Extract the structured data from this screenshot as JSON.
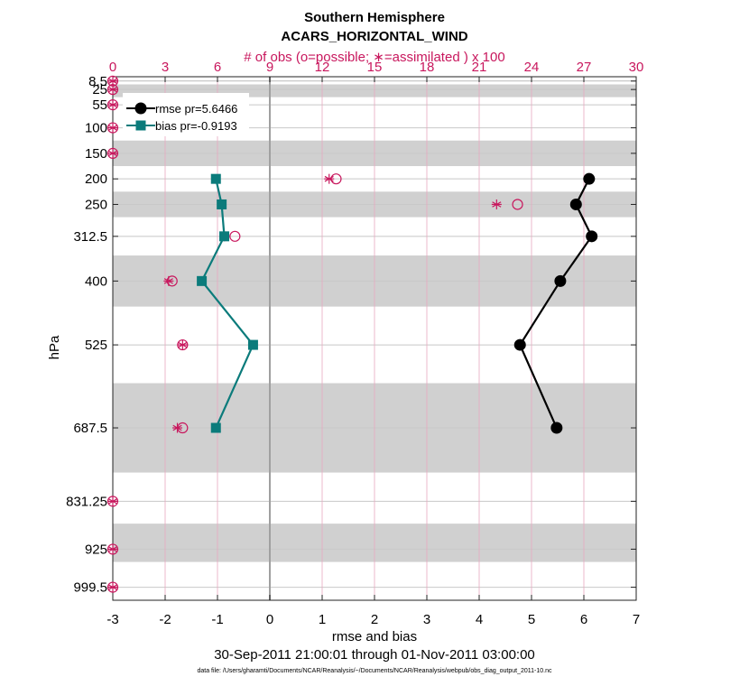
{
  "chart_data": {
    "type": "line",
    "title": "Southern Hemisphere",
    "subtitle": "ACARS_HORIZONTAL_WIND",
    "top_axis_label": "# of obs (o=possible; ∗=assimilated ) x 100",
    "xlabel": "rmse and bias",
    "ylabel": "hPa",
    "date_range": "30-Sep-2011 21:00:01 through 01-Nov-2011 03:00:00",
    "footnote": "data file: /Users/gharamti/Documents/NCAR/Reanalysis/~/Documents/NCAR/Reanalysis/webpub/obs_diag_output_2011-10.nc",
    "xlim": [
      -3,
      7
    ],
    "x_ticks": [
      "-3",
      "-2",
      "-1",
      "0",
      "1",
      "2",
      "3",
      "4",
      "5",
      "6",
      "7"
    ],
    "top_xlim": [
      0,
      30
    ],
    "top_ticks": [
      "0",
      "3",
      "6",
      "9",
      "12",
      "15",
      "18",
      "21",
      "24",
      "27",
      "30"
    ],
    "ylim_hpa": [
      0,
      1025
    ],
    "levels": [
      8.5,
      25,
      55,
      100,
      150,
      200,
      250,
      312.5,
      400,
      525,
      687.5,
      831.25,
      925,
      999.5
    ],
    "level_labels": [
      "8.5",
      "25",
      "55",
      "100",
      "150",
      "200",
      "250",
      "312.5",
      "400",
      "525",
      "687.5",
      "831.25",
      "925",
      "999.5"
    ],
    "layer_bands_hpa": [
      [
        7,
        9
      ],
      [
        15,
        40
      ],
      [
        125,
        175
      ],
      [
        225,
        275
      ],
      [
        350,
        450
      ],
      [
        600,
        775
      ],
      [
        875,
        950
      ]
    ],
    "series": [
      {
        "name": "rmse",
        "legend": "rmse pr=5.6466",
        "color": "#000000",
        "marker": "circle",
        "levels": [
          200,
          250,
          312.5,
          400,
          525,
          687.5
        ],
        "values": [
          6.1,
          5.85,
          6.15,
          5.55,
          4.78,
          5.48
        ]
      },
      {
        "name": "bias",
        "legend": "bias pr=-0.9193",
        "color": "#0b7b7b",
        "marker": "square",
        "levels": [
          200,
          250,
          312.5,
          400,
          525,
          687.5
        ],
        "values": [
          -1.03,
          -0.92,
          -0.87,
          -1.3,
          -0.32,
          -1.03
        ]
      }
    ],
    "obs_counts": {
      "color": "#c8175d",
      "levels": [
        8.5,
        25,
        55,
        100,
        150,
        200,
        250,
        312.5,
        400,
        525,
        687.5,
        831.25,
        925,
        999.5
      ],
      "possible": [
        0,
        0,
        0,
        0,
        0,
        12.8,
        23.2,
        7.0,
        3.4,
        4.0,
        4.0,
        0,
        0,
        0
      ],
      "assimilated": [
        0,
        0,
        0,
        0,
        0,
        12.4,
        22.0,
        6.4,
        3.2,
        4.0,
        3.7,
        0,
        0,
        0
      ]
    }
  }
}
